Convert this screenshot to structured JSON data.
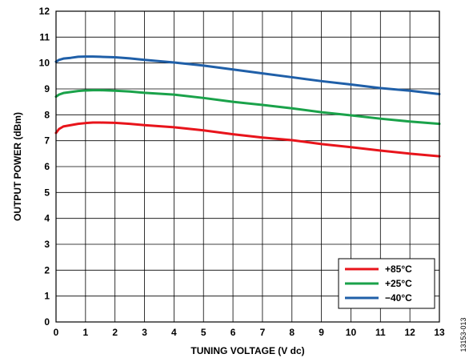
{
  "chart_data": {
    "type": "line",
    "title": "",
    "xlabel": "TUNING VOLTAGE (V dc)",
    "ylabel": "OUTPUT POWER (dBm)",
    "xlim": [
      0,
      13
    ],
    "ylim": [
      0,
      12
    ],
    "x_ticks": [
      0,
      1,
      2,
      3,
      4,
      5,
      6,
      7,
      8,
      9,
      10,
      11,
      12,
      13
    ],
    "y_ticks": [
      0,
      1,
      2,
      3,
      4,
      5,
      6,
      7,
      8,
      9,
      10,
      11,
      12
    ],
    "grid": true,
    "legend_position": "bottom-right",
    "series": [
      {
        "name": "+85°C",
        "color": "#e8141b",
        "x": [
          0,
          0.1,
          0.25,
          0.5,
          0.75,
          1,
          1.25,
          1.5,
          2,
          2.5,
          3,
          4,
          5,
          6,
          7,
          8,
          9,
          10,
          11,
          12,
          13
        ],
        "y": [
          7.3,
          7.45,
          7.55,
          7.6,
          7.65,
          7.68,
          7.7,
          7.7,
          7.69,
          7.65,
          7.6,
          7.52,
          7.4,
          7.25,
          7.12,
          7.02,
          6.87,
          6.75,
          6.62,
          6.5,
          6.4
        ]
      },
      {
        "name": "+25°C",
        "color": "#1aa24a",
        "x": [
          0,
          0.1,
          0.25,
          0.5,
          0.75,
          1,
          1.25,
          1.5,
          2,
          2.5,
          3,
          4,
          5,
          6,
          7,
          8,
          9,
          10,
          11,
          12,
          13
        ],
        "y": [
          8.7,
          8.78,
          8.84,
          8.88,
          8.92,
          8.94,
          8.95,
          8.95,
          8.93,
          8.9,
          8.85,
          8.78,
          8.65,
          8.5,
          8.38,
          8.25,
          8.1,
          7.98,
          7.85,
          7.74,
          7.65
        ]
      },
      {
        "name": "−40°C",
        "color": "#1f5fa8",
        "x": [
          0,
          0.1,
          0.25,
          0.5,
          0.75,
          1,
          1.25,
          1.5,
          2,
          2.5,
          3,
          4,
          5,
          6,
          7,
          8,
          9,
          10,
          11,
          12,
          13
        ],
        "y": [
          10.05,
          10.12,
          10.17,
          10.2,
          10.24,
          10.25,
          10.25,
          10.24,
          10.22,
          10.18,
          10.12,
          10.02,
          9.9,
          9.75,
          9.6,
          9.45,
          9.3,
          9.17,
          9.03,
          8.93,
          8.8
        ]
      }
    ]
  },
  "figure_id": "13153-013"
}
